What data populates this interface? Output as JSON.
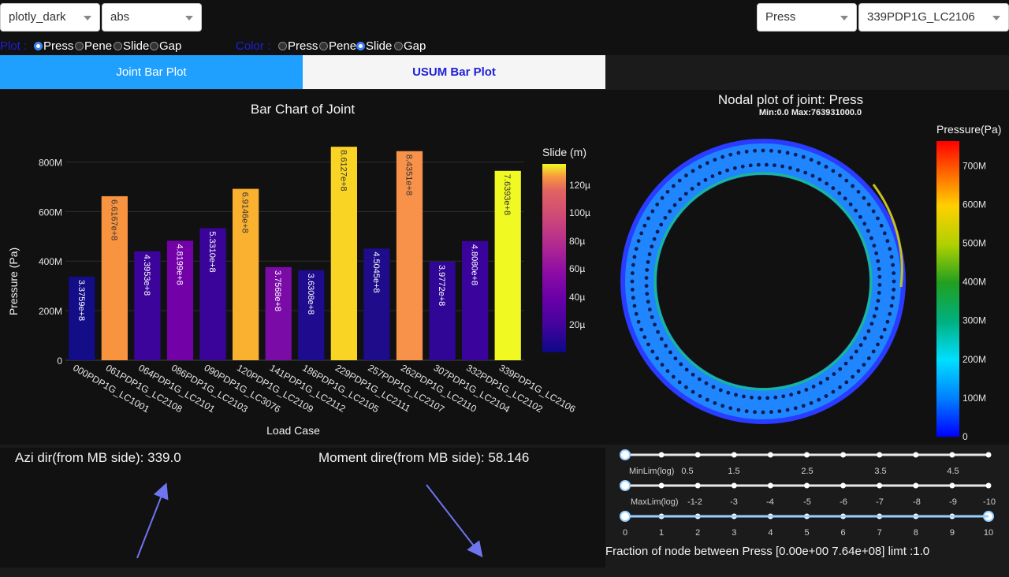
{
  "controls": {
    "theme_select": "plotly_dark",
    "mode_select": "abs",
    "quantity_select": "Press",
    "loadcase_select": "339PDP1G_LC2106"
  },
  "plot_radio": {
    "label": "Plot :",
    "options": [
      "Press",
      "Pene",
      "Slide",
      "Gap"
    ],
    "selected": "Press"
  },
  "color_radio": {
    "label": "Color :",
    "options": [
      "Press",
      "Pene",
      "Slide",
      "Gap"
    ],
    "selected": "Slide"
  },
  "tabs": {
    "joint": "Joint Bar Plot",
    "usum": "USUM Bar Plot"
  },
  "chart_data": [
    {
      "type": "bar",
      "title": "Bar Chart of Joint",
      "xlabel": "Load Case",
      "ylabel": "Pressure (Pa)",
      "ylim": [
        0,
        900000000
      ],
      "yticks": [
        "0",
        "200M",
        "400M",
        "600M",
        "800M"
      ],
      "ytick_values": [
        0,
        200000000,
        400000000,
        600000000,
        800000000
      ],
      "categories": [
        "000PDP1G_LC1001",
        "061PDP1G_LC2108",
        "064PDP1G_LC2101",
        "086PDP1G_LC2103",
        "090PDP1G_LC3076",
        "120PDP1G_LC2109",
        "141PDP1G_LC2112",
        "186PDP1G_LC2105",
        "229PDP1G_LC2111",
        "257PDP1G_LC2107",
        "262PDP1G_LC2110",
        "307PDP1G_LC2104",
        "332PDP1G_LC2102",
        "339PDP1G_LC2106"
      ],
      "values": [
        337590000,
        661670000,
        439530000,
        481990000,
        533100000,
        691460000,
        375680000,
        363080000,
        861270000,
        450450000,
        843510000,
        397720000,
        480800000,
        763930000
      ],
      "data_labels": [
        "3.3759e+8",
        "6.6167e+8",
        "4.3953e+8",
        "4.8199e+8",
        "5.3310e+8",
        "6.9146e+8",
        "3.7568e+8",
        "3.6308e+8",
        "8.6127e+8",
        "4.5045e+8",
        "8.4351e+8",
        "3.9772e+8",
        "4.8080e+8",
        "7.6393e+8"
      ],
      "bar_colors": [
        "#130d87",
        "#f89340",
        "#3c049b",
        "#7201a8",
        "#3a049a",
        "#fbb130",
        "#7a0ba7",
        "#1f0b8e",
        "#f9d424",
        "#1e0c8b",
        "#f8924b",
        "#2f0695",
        "#3a049c",
        "#f0f921"
      ],
      "colorbar": {
        "title": "Slide (m)",
        "ticks": [
          "20µ",
          "40µ",
          "60µ",
          "80µ",
          "100µ",
          "120µ"
        ]
      }
    },
    {
      "type": "heatmap",
      "title": "Nodal plot of joint: Press",
      "subtitle": "Min:0.0 Max:763931000.0",
      "colorbar": {
        "title": "Pressure(Pa)",
        "ticks": [
          "0",
          "100M",
          "200M",
          "300M",
          "400M",
          "500M",
          "600M",
          "700M"
        ]
      }
    }
  ],
  "directions": {
    "azi_label": "Azi dir(from MB side): 339.0",
    "moment_label": "Moment dire(from MB side): 58.146"
  },
  "sliders": {
    "min_label": "MinLim(log)",
    "min_ticks": [
      "0.5",
      "1.5",
      "2.5",
      "3.5",
      "4.5"
    ],
    "max_label": "MaxLim(log)",
    "max_ticks": [
      "-1",
      "-2",
      "-3",
      "-4",
      "-5",
      "-6",
      "-7",
      "-8",
      "-9",
      "-10"
    ],
    "frac_ticks": [
      "0",
      "1",
      "2",
      "3",
      "4",
      "5",
      "6",
      "7",
      "8",
      "9",
      "10"
    ],
    "fraction_text": "Fraction of node between Press [0.00e+00 7.64e+08] limt :1.0"
  },
  "colors": {
    "accent": "#1fa0ff",
    "label_blue": "#1f1fd8",
    "arrow": "#6f74f0"
  }
}
